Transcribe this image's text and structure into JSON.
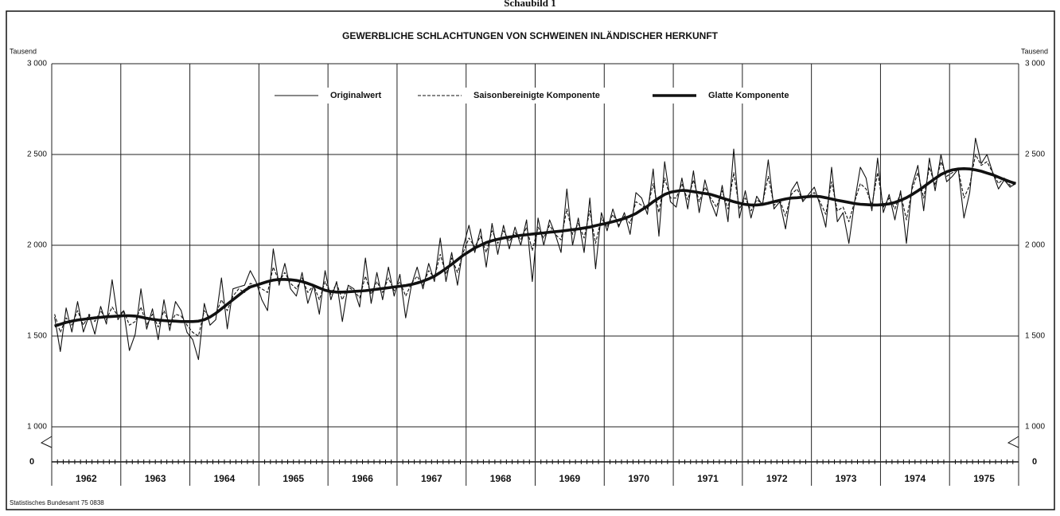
{
  "chart_data": {
    "type": "line",
    "header": "Schaubild 1",
    "title": "GEWERBLICHE SCHLACHTUNGEN VON SCHWEINEN INLÄNDISCHER HERKUNFT",
    "y_unit": "Tausend",
    "source": "Statistisches Bundesamt 75 0838",
    "categories": [
      "1962",
      "1963",
      "1964",
      "1965",
      "1966",
      "1967",
      "1968",
      "1969",
      "1970",
      "1971",
      "1972",
      "1973",
      "1974",
      "1975"
    ],
    "ylim": [
      1000,
      3000
    ],
    "yticks": [
      {
        "value": 1000,
        "label": "1 000"
      },
      {
        "value": 1500,
        "label": "1 500"
      },
      {
        "value": 2000,
        "label": "2 000"
      },
      {
        "value": 2500,
        "label": "2 500"
      },
      {
        "value": 3000,
        "label": "3 000"
      }
    ],
    "break_tick": 0,
    "grid": true,
    "series": [
      {
        "name": "Originalwert",
        "color": "#111111",
        "line_style": "solid",
        "line_width": 1.1,
        "values": [
          [
            1605,
            1415,
            1655,
            1522,
            1690,
            1522,
            1616,
            1510,
            1663,
            1566,
            1810,
            1590
          ],
          [
            1640,
            1420,
            1510,
            1760,
            1538,
            1650,
            1480,
            1700,
            1530,
            1690,
            1640,
            1520
          ],
          [
            1480,
            1370,
            1680,
            1560,
            1590,
            1820,
            1540,
            1760,
            1770,
            1780,
            1860,
            1800
          ],
          [
            1700,
            1640,
            1980,
            1780,
            1900,
            1760,
            1720,
            1850,
            1680,
            1780,
            1620,
            1860
          ],
          [
            1700,
            1800,
            1580,
            1780,
            1760,
            1660,
            1930,
            1680,
            1850,
            1700,
            1880,
            1720
          ],
          [
            1840,
            1600,
            1780,
            1880,
            1760,
            1900,
            1800,
            2040,
            1800,
            1960,
            1780,
            1990
          ],
          [
            2110,
            1960,
            2090,
            1880,
            2120,
            1950,
            2110,
            1980,
            2100,
            2000,
            2140,
            1800
          ],
          [
            2150,
            2000,
            2140,
            2060,
            1960,
            2310,
            2000,
            2150,
            1960,
            2260,
            1870,
            2180
          ],
          [
            2080,
            2200,
            2100,
            2180,
            2060,
            2290,
            2260,
            2170,
            2420,
            2050,
            2460,
            2240
          ],
          [
            2210,
            2370,
            2200,
            2410,
            2180,
            2360,
            2240,
            2160,
            2330,
            2130,
            2530,
            2150
          ],
          [
            2300,
            2150,
            2270,
            2220,
            2470,
            2200,
            2240,
            2090,
            2300,
            2350,
            2240,
            2280
          ],
          [
            2320,
            2220,
            2100,
            2430,
            2130,
            2180,
            2010,
            2240,
            2430,
            2370,
            2190,
            2480
          ],
          [
            2180,
            2280,
            2140,
            2300,
            2010,
            2330,
            2440,
            2190,
            2480,
            2300,
            2500,
            2350
          ],
          [
            2380,
            2420,
            2150,
            2290,
            2590,
            2450,
            2500,
            2400,
            2310,
            2360,
            2320,
            2340
          ]
        ]
      },
      {
        "name": "Saisonbereinigte Komponente",
        "color": "#111111",
        "line_style": "dashed",
        "line_width": 1.1,
        "values": [
          [
            1620,
            1520,
            1600,
            1560,
            1640,
            1560,
            1620,
            1580,
            1640,
            1590,
            1660,
            1610
          ],
          [
            1640,
            1560,
            1580,
            1660,
            1560,
            1620,
            1550,
            1640,
            1560,
            1620,
            1610,
            1560
          ],
          [
            1520,
            1500,
            1640,
            1600,
            1620,
            1700,
            1640,
            1720,
            1760,
            1740,
            1790,
            1780
          ],
          [
            1760,
            1740,
            1880,
            1800,
            1850,
            1790,
            1760,
            1820,
            1740,
            1780,
            1700,
            1800
          ],
          [
            1730,
            1790,
            1700,
            1770,
            1750,
            1710,
            1830,
            1730,
            1800,
            1740,
            1820,
            1750
          ],
          [
            1800,
            1720,
            1790,
            1830,
            1780,
            1860,
            1820,
            1950,
            1840,
            1930,
            1850,
            1960
          ],
          [
            2040,
            1990,
            2050,
            1960,
            2080,
            2010,
            2080,
            2020,
            2070,
            2030,
            2100,
            1970
          ],
          [
            2100,
            2040,
            2110,
            2060,
            2030,
            2200,
            2060,
            2120,
            2040,
            2190,
            2010,
            2150
          ],
          [
            2100,
            2170,
            2110,
            2160,
            2120,
            2240,
            2220,
            2200,
            2340,
            2180,
            2370,
            2260
          ],
          [
            2260,
            2340,
            2250,
            2360,
            2240,
            2320,
            2260,
            2210,
            2300,
            2200,
            2400,
            2200
          ],
          [
            2260,
            2190,
            2250,
            2230,
            2380,
            2220,
            2250,
            2160,
            2280,
            2310,
            2250,
            2270
          ],
          [
            2290,
            2240,
            2170,
            2350,
            2190,
            2210,
            2130,
            2240,
            2340,
            2310,
            2220,
            2400
          ],
          [
            2210,
            2260,
            2200,
            2290,
            2140,
            2310,
            2400,
            2260,
            2430,
            2330,
            2460,
            2380
          ],
          [
            2400,
            2420,
            2260,
            2330,
            2500,
            2440,
            2460,
            2400,
            2340,
            2370,
            2330,
            2340
          ]
        ]
      },
      {
        "name": "Glatte Komponente",
        "color": "#111111",
        "line_style": "solid",
        "line_width": 3.6,
        "values": [
          [
            1555,
            1565,
            1575,
            1582,
            1588,
            1592,
            1596,
            1600,
            1603,
            1606,
            1608,
            1610
          ],
          [
            1612,
            1612,
            1610,
            1605,
            1598,
            1592,
            1588,
            1585,
            1583,
            1582,
            1580,
            1580
          ],
          [
            1580,
            1582,
            1590,
            1605,
            1625,
            1650,
            1675,
            1700,
            1725,
            1750,
            1770,
            1780
          ],
          [
            1790,
            1800,
            1808,
            1812,
            1812,
            1810,
            1806,
            1800,
            1790,
            1778,
            1765,
            1752
          ],
          [
            1745,
            1742,
            1742,
            1744,
            1746,
            1748,
            1750,
            1754,
            1758,
            1762,
            1766,
            1770
          ],
          [
            1774,
            1778,
            1784,
            1792,
            1802,
            1815,
            1830,
            1850,
            1872,
            1895,
            1920,
            1945
          ],
          [
            1965,
            1985,
            2000,
            2015,
            2025,
            2033,
            2040,
            2045,
            2050,
            2055,
            2058,
            2062
          ],
          [
            2065,
            2068,
            2072,
            2075,
            2078,
            2082,
            2086,
            2090,
            2095,
            2100,
            2108,
            2115
          ],
          [
            2122,
            2130,
            2138,
            2148,
            2160,
            2175,
            2195,
            2215,
            2240,
            2260,
            2280,
            2292
          ],
          [
            2298,
            2302,
            2300,
            2295,
            2290,
            2285,
            2280,
            2270,
            2260,
            2250,
            2240,
            2232
          ],
          [
            2225,
            2222,
            2222,
            2225,
            2232,
            2240,
            2248,
            2255,
            2260,
            2262,
            2265,
            2268
          ],
          [
            2270,
            2268,
            2262,
            2255,
            2248,
            2242,
            2236,
            2230,
            2226,
            2224,
            2222,
            2222
          ],
          [
            2224,
            2228,
            2236,
            2248,
            2262,
            2280,
            2300,
            2322,
            2345,
            2368,
            2390,
            2405
          ],
          [
            2415,
            2420,
            2422,
            2420,
            2415,
            2408,
            2398,
            2388,
            2375,
            2362,
            2350,
            2340
          ]
        ]
      }
    ]
  }
}
